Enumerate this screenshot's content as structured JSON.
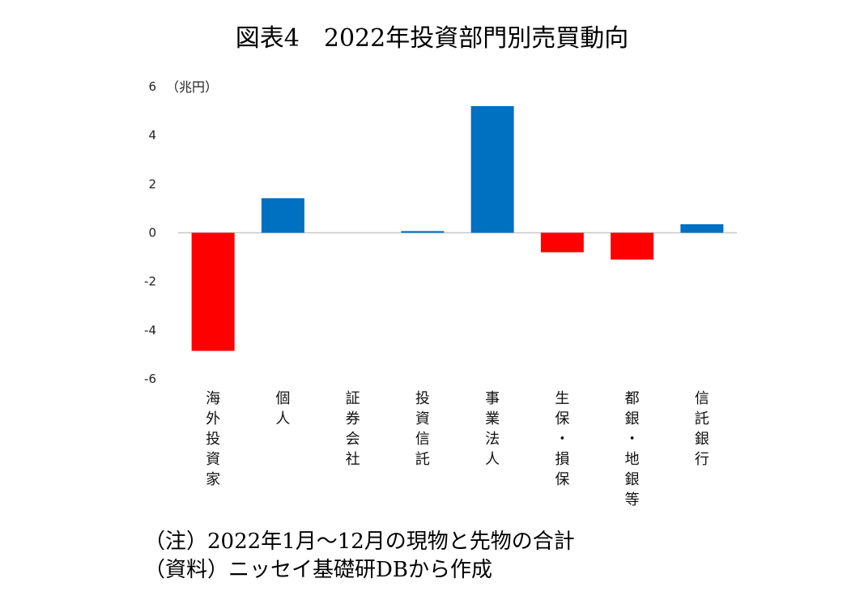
{
  "chart_data": {
    "type": "bar",
    "title": "図表4　2022年投資部門別売買動向",
    "unit_label": "（兆円）",
    "ylim": [
      -6,
      6
    ],
    "yticks": [
      6,
      4,
      2,
      0,
      -2,
      -4,
      -6
    ],
    "categories": [
      "海外投資家",
      "個人",
      "証券会社",
      "投資信託",
      "事業法人",
      "生保・損保",
      "都銀・地銀等",
      "信託銀行"
    ],
    "values": [
      -4.85,
      1.42,
      0.0,
      0.07,
      5.2,
      -0.8,
      -1.1,
      0.35
    ],
    "positive_color": "#0070C0",
    "negative_color": "#FF0000",
    "xlabel": "",
    "ylabel": ""
  },
  "notes": {
    "note1": "（注）2022年1月～12月の現物と先物の合計",
    "note2": "（資料）ニッセイ基礎研DBから作成"
  }
}
